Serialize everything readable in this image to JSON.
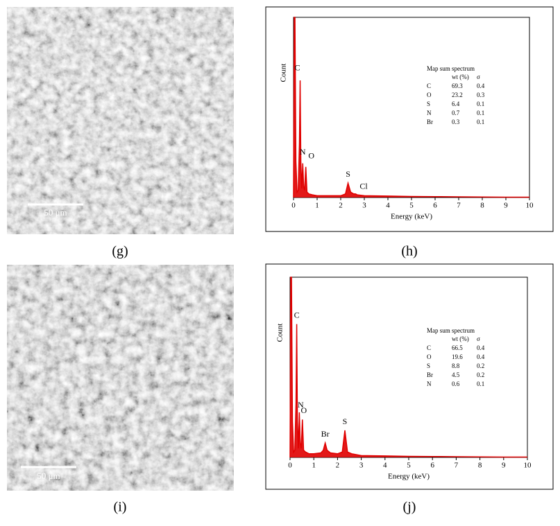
{
  "images": [
    {
      "label": "(g)",
      "scale_bar": "50 μm"
    },
    {
      "label": "(i)",
      "scale_bar": "50 μm"
    }
  ],
  "chart_data": [
    {
      "type": "line",
      "label": "(h)",
      "xlabel": "Energy (keV)",
      "ylabel": "Count",
      "xlim": [
        0,
        10
      ],
      "ylim": [
        0,
        100
      ],
      "xticks": [
        0,
        1,
        2,
        3,
        4,
        5,
        6,
        7,
        8,
        9,
        10
      ],
      "color": "#e00000",
      "x": [
        0,
        0.03,
        0.06,
        0.1,
        0.15,
        0.2,
        0.25,
        0.28,
        0.31,
        0.35,
        0.39,
        0.43,
        0.47,
        0.52,
        0.57,
        0.65,
        0.8,
        1,
        1.5,
        2,
        2.2,
        2.31,
        2.42,
        2.55,
        2.62,
        2.7,
        3,
        4,
        5,
        6,
        7,
        8,
        9,
        10
      ],
      "values": [
        0,
        100,
        100,
        20,
        3,
        4,
        30,
        65,
        20,
        5,
        19,
        6,
        4,
        17,
        3,
        2,
        1.5,
        1,
        1,
        1,
        2,
        8,
        3,
        2,
        2,
        1.5,
        1,
        0.8,
        0.6,
        0.5,
        0.4,
        0.3,
        0.2,
        0.2
      ],
      "peak_labels": [
        "C",
        "N",
        "O",
        "S",
        "Cl"
      ],
      "inset": {
        "title": "Map sum spectrum",
        "columns": [
          "wt (%)",
          "σ"
        ],
        "rows": [
          [
            "C",
            69.3,
            0.4
          ],
          [
            "O",
            23.2,
            0.3
          ],
          [
            "S",
            6.4,
            0.1
          ],
          [
            "N",
            0.7,
            0.1
          ],
          [
            "Br",
            0.3,
            0.1
          ]
        ]
      }
    },
    {
      "type": "line",
      "label": "(j)",
      "xlabel": "Energy (keV)",
      "ylabel": "Count",
      "xlim": [
        0,
        10
      ],
      "ylim": [
        0,
        100
      ],
      "xticks": [
        0,
        1,
        2,
        3,
        4,
        5,
        6,
        7,
        8,
        9,
        10
      ],
      "color": "#e00000",
      "x": [
        0,
        0.03,
        0.06,
        0.1,
        0.15,
        0.2,
        0.25,
        0.28,
        0.31,
        0.35,
        0.39,
        0.43,
        0.47,
        0.52,
        0.57,
        0.65,
        0.8,
        1,
        1.3,
        1.4,
        1.48,
        1.56,
        1.7,
        2,
        2.2,
        2.31,
        2.42,
        2.6,
        3,
        4,
        5,
        6,
        7,
        8,
        9,
        10
      ],
      "values": [
        0,
        100,
        100,
        20,
        3,
        4,
        30,
        74,
        20,
        5,
        25,
        8,
        5,
        21,
        4,
        3,
        2,
        2,
        2.5,
        4,
        8,
        4,
        2.5,
        2,
        3,
        15,
        3,
        2,
        1,
        0.8,
        0.6,
        0.5,
        0.4,
        0.3,
        0.2,
        0.2
      ],
      "peak_labels": [
        "C",
        "N",
        "O",
        "Br",
        "S"
      ],
      "inset": {
        "title": "Map sum spectrum",
        "columns": [
          "wt (%)",
          "σ"
        ],
        "rows": [
          [
            "C",
            66.5,
            0.4
          ],
          [
            "O",
            19.6,
            0.4
          ],
          [
            "S",
            8.8,
            0.2
          ],
          [
            "Br",
            4.5,
            0.2
          ],
          [
            "N",
            0.6,
            0.1
          ]
        ]
      }
    }
  ]
}
